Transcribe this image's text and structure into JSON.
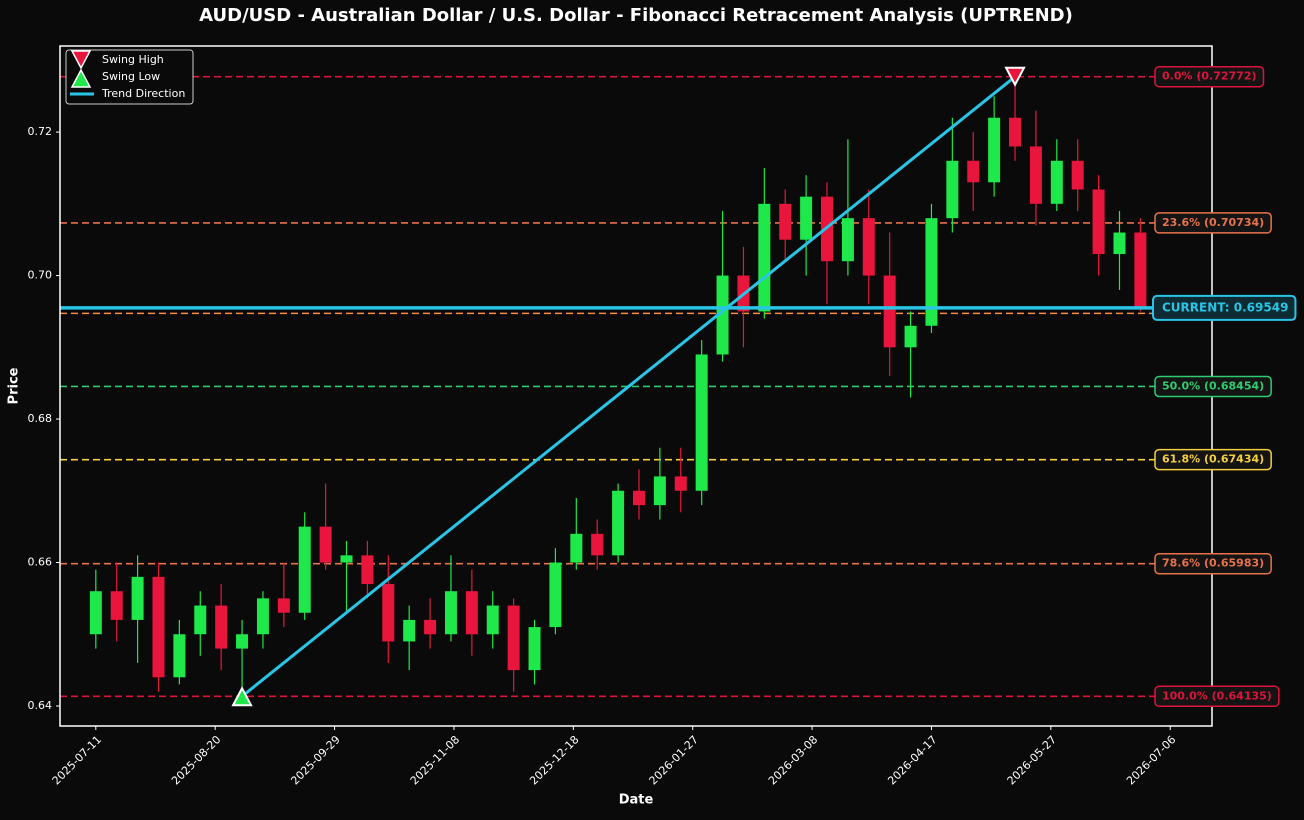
{
  "chart_data": {
    "type": "candlestick",
    "title": "AUD/USD - Australian Dollar / U.S. Dollar - Fibonacci Retracement Analysis (UPTREND)",
    "x_label": "Date",
    "y_label": "Price",
    "x": [
      "2025-07-11",
      "2025-07-18",
      "2025-07-25",
      "2025-08-01",
      "2025-08-08",
      "2025-08-15",
      "2025-08-22",
      "2025-08-29",
      "2025-09-05",
      "2025-09-12",
      "2025-09-19",
      "2025-09-26",
      "2025-10-03",
      "2025-10-10",
      "2025-10-17",
      "2025-10-24",
      "2025-10-31",
      "2025-11-07",
      "2025-11-14",
      "2025-11-21",
      "2025-11-28",
      "2025-12-05",
      "2025-12-12",
      "2025-12-19",
      "2025-12-26",
      "2026-01-02",
      "2026-01-09",
      "2026-01-16",
      "2026-01-23",
      "2026-01-30",
      "2026-02-06",
      "2026-02-13",
      "2026-02-20",
      "2026-02-27",
      "2026-03-06",
      "2026-03-13",
      "2026-03-20",
      "2026-03-27",
      "2026-04-03",
      "2026-04-10",
      "2026-04-17",
      "2026-04-24",
      "2026-05-01",
      "2026-05-08",
      "2026-05-15",
      "2026-05-22",
      "2026-05-29",
      "2026-06-05",
      "2026-06-12",
      "2026-06-19",
      "2026-06-26"
    ],
    "open": [
      0.65,
      0.656,
      0.652,
      0.658,
      0.644,
      0.65,
      0.654,
      0.648,
      0.65,
      0.655,
      0.653,
      0.665,
      0.66,
      0.661,
      0.657,
      0.649,
      0.652,
      0.65,
      0.656,
      0.65,
      0.654,
      0.645,
      0.651,
      0.66,
      0.664,
      0.661,
      0.67,
      0.668,
      0.672,
      0.67,
      0.689,
      0.7,
      0.695,
      0.71,
      0.705,
      0.711,
      0.702,
      0.708,
      0.7,
      0.69,
      0.693,
      0.708,
      0.716,
      0.713,
      0.722,
      0.718,
      0.71,
      0.716,
      0.712,
      0.703,
      0.706
    ],
    "high": [
      0.659,
      0.66,
      0.661,
      0.66,
      0.652,
      0.656,
      0.657,
      0.652,
      0.656,
      0.66,
      0.667,
      0.671,
      0.663,
      0.663,
      0.661,
      0.654,
      0.655,
      0.661,
      0.659,
      0.656,
      0.655,
      0.652,
      0.662,
      0.669,
      0.666,
      0.671,
      0.673,
      0.676,
      0.676,
      0.691,
      0.709,
      0.704,
      0.715,
      0.712,
      0.714,
      0.713,
      0.719,
      0.712,
      0.706,
      0.695,
      0.71,
      0.722,
      0.72,
      0.725,
      0.72772,
      0.723,
      0.719,
      0.719,
      0.714,
      0.709,
      0.708
    ],
    "low": [
      0.648,
      0.649,
      0.646,
      0.642,
      0.643,
      0.647,
      0.645,
      0.64135,
      0.648,
      0.651,
      0.652,
      0.659,
      0.653,
      0.655,
      0.646,
      0.645,
      0.648,
      0.649,
      0.647,
      0.648,
      0.642,
      0.643,
      0.65,
      0.659,
      0.659,
      0.66,
      0.666,
      0.666,
      0.667,
      0.668,
      0.688,
      0.69,
      0.694,
      0.702,
      0.7,
      0.696,
      0.7,
      0.696,
      0.686,
      0.683,
      0.692,
      0.706,
      0.709,
      0.711,
      0.716,
      0.707,
      0.709,
      0.709,
      0.7,
      0.698,
      0.695
    ],
    "close": [
      0.656,
      0.652,
      0.658,
      0.644,
      0.65,
      0.654,
      0.648,
      0.65,
      0.655,
      0.653,
      0.665,
      0.66,
      0.661,
      0.657,
      0.649,
      0.652,
      0.65,
      0.656,
      0.65,
      0.654,
      0.645,
      0.651,
      0.66,
      0.664,
      0.661,
      0.67,
      0.668,
      0.672,
      0.67,
      0.689,
      0.7,
      0.695,
      0.71,
      0.705,
      0.711,
      0.702,
      0.708,
      0.7,
      0.69,
      0.693,
      0.708,
      0.716,
      0.713,
      0.722,
      0.718,
      0.71,
      0.716,
      0.712,
      0.703,
      0.706,
      0.69549
    ],
    "up_color": "#1ee84a",
    "down_color": "#e8163c",
    "fib_levels": [
      {
        "label": "0.0% (0.72772)",
        "value": 0.72772,
        "color": "#dc143c"
      },
      {
        "label": "23.6% (0.70734)",
        "value": 0.70734,
        "color": "#e8734a"
      },
      {
        "value": 0.69473,
        "color": "#ff8c42"
      },
      {
        "label": "50.0% (0.68454)",
        "value": 0.68454,
        "color": "#2ecc71"
      },
      {
        "label": "61.8% (0.67434)",
        "value": 0.67434,
        "color": "#f4d03f"
      },
      {
        "label": "78.6% (0.65983)",
        "value": 0.65983,
        "color": "#e8734a"
      },
      {
        "label": "100.0% (0.64135)",
        "value": 0.64135,
        "color": "#dc143c"
      }
    ],
    "current": 0.69549,
    "current_label": "CURRENT: 0.69549",
    "current_color": "#29c5e6",
    "swing_high": {
      "name": "Swing High",
      "x": "2026-05-15",
      "y": 0.72772,
      "color": "#e8163c"
    },
    "swing_low": {
      "name": "Swing Low",
      "x": "2025-08-29",
      "y": 0.64135,
      "color": "#1ee84a"
    },
    "trend": {
      "name": "Trend Direction",
      "color": "#29c5e6"
    },
    "xlim": [
      "2025-06-29",
      "2026-07-20"
    ],
    "xticks": [
      "2025-07-11",
      "2025-08-20",
      "2025-09-29",
      "2025-11-08",
      "2025-12-18",
      "2026-01-27",
      "2026-03-08",
      "2026-04-17",
      "2026-05-27",
      "2026-07-06"
    ],
    "ylim": [
      0.63721,
      0.732
    ],
    "yticks": [
      0.64,
      0.66,
      0.68,
      {
        "value": 0.7,
        "label": "0.70"
      },
      0.72
    ]
  }
}
